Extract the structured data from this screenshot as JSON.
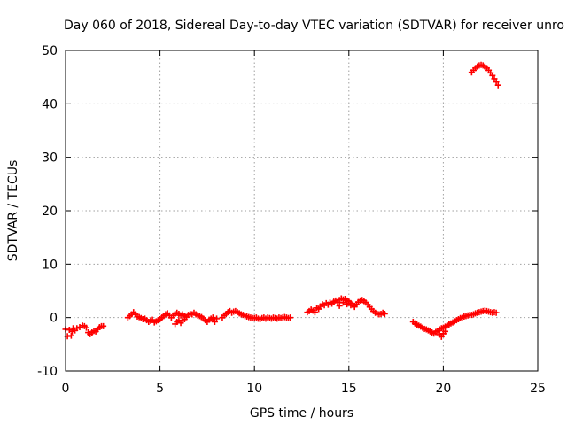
{
  "chart_data": {
    "type": "scatter",
    "title": "Day 060 of 2018, Sidereal Day-to-day VTEC variation (SDTVAR) for receiver unro",
    "xlabel": "GPS time / hours",
    "ylabel": "SDTVAR / TECUs",
    "xlim": [
      0,
      25
    ],
    "ylim": [
      -10,
      50
    ],
    "xticks": [
      "0",
      "5",
      "10",
      "15",
      "20",
      "25"
    ],
    "yticks": [
      "-10",
      "0",
      "10",
      "20",
      "30",
      "40",
      "50"
    ],
    "grid": true,
    "marker": "plus",
    "series": [
      {
        "name": "SDTVAR",
        "color": "#ff0000",
        "x": [
          0.0,
          0.1,
          0.2,
          0.3,
          0.35,
          0.4,
          0.5,
          0.6,
          0.75,
          0.9,
          1.0,
          1.1,
          1.2,
          1.3,
          1.4,
          1.5,
          1.6,
          1.7,
          1.8,
          1.9,
          2.0,
          3.3,
          3.4,
          3.5,
          3.6,
          3.7,
          3.8,
          3.9,
          4.0,
          4.1,
          4.2,
          4.3,
          4.4,
          4.5,
          4.6,
          4.7,
          4.8,
          4.9,
          5.0,
          5.1,
          5.2,
          5.3,
          5.4,
          5.5,
          5.6,
          5.7,
          5.8,
          5.9,
          6.0,
          6.1,
          6.2,
          6.3,
          6.4,
          6.5,
          6.6,
          6.7,
          6.8,
          6.9,
          7.0,
          7.1,
          7.2,
          7.3,
          7.4,
          7.5,
          7.6,
          7.7,
          7.8,
          7.9,
          8.0,
          5.8,
          5.9,
          6.0,
          6.1,
          6.2,
          6.3,
          8.3,
          8.4,
          8.5,
          8.6,
          8.7,
          8.8,
          8.9,
          9.0,
          9.1,
          9.2,
          9.3,
          9.4,
          9.5,
          9.6,
          9.7,
          9.8,
          9.9,
          10.0,
          10.1,
          10.2,
          10.3,
          10.4,
          10.5,
          10.6,
          10.7,
          10.8,
          10.9,
          11.0,
          11.1,
          11.2,
          11.3,
          11.4,
          11.5,
          11.6,
          11.7,
          11.8,
          11.9,
          12.8,
          12.9,
          13.0,
          13.1,
          13.2,
          13.3,
          13.4,
          13.5,
          13.6,
          13.7,
          13.8,
          13.9,
          14.0,
          14.1,
          14.2,
          14.3,
          14.4,
          14.5,
          14.6,
          14.7,
          14.8,
          14.9,
          15.0,
          15.1,
          15.2,
          15.3,
          15.4,
          15.5,
          15.6,
          15.7,
          15.8,
          15.9,
          16.0,
          16.1,
          16.2,
          16.3,
          16.4,
          16.5,
          16.6,
          16.7,
          16.8,
          16.9,
          14.5,
          14.7,
          14.9,
          15.1,
          15.3,
          18.4,
          18.5,
          18.6,
          18.7,
          18.8,
          18.9,
          19.0,
          19.1,
          19.2,
          19.3,
          19.4,
          19.5,
          19.6,
          19.7,
          19.8,
          19.9,
          20.0,
          20.1,
          20.2,
          20.3,
          20.4,
          20.5,
          20.6,
          20.7,
          20.8,
          20.9,
          21.0,
          21.1,
          21.2,
          21.3,
          21.4,
          21.5,
          21.6,
          21.7,
          21.8,
          21.9,
          22.0,
          22.1,
          22.2,
          22.3,
          22.4,
          22.5,
          22.6,
          22.7,
          22.8,
          19.8,
          19.9,
          20.0,
          20.1,
          21.5,
          21.6,
          21.7,
          21.8,
          21.9,
          22.0,
          22.1,
          22.2,
          22.3,
          22.4,
          22.5,
          22.6,
          22.7,
          22.8,
          22.9
        ],
        "y": [
          -2.2,
          -3.5,
          -2.3,
          -3.4,
          -2.6,
          -2.0,
          -2.4,
          -2.0,
          -1.8,
          -1.5,
          -1.6,
          -1.9,
          -2.8,
          -3.1,
          -2.8,
          -2.5,
          -2.6,
          -2.2,
          -1.8,
          -1.6,
          -1.6,
          0.0,
          0.3,
          0.6,
          1.0,
          0.6,
          0.2,
          0.1,
          -0.1,
          -0.3,
          -0.2,
          -0.5,
          -0.8,
          -0.6,
          -0.4,
          -0.9,
          -0.7,
          -0.5,
          -0.3,
          0.0,
          0.3,
          0.6,
          0.8,
          0.4,
          0.0,
          0.4,
          0.7,
          0.9,
          0.7,
          0.4,
          0.6,
          0.3,
          0.1,
          0.5,
          0.7,
          0.6,
          0.9,
          0.6,
          0.4,
          0.3,
          0.1,
          -0.2,
          -0.5,
          -0.8,
          -0.4,
          -0.2,
          0.0,
          -0.8,
          -0.2,
          -1.2,
          -0.8,
          -0.5,
          -1.0,
          -0.6,
          -0.3,
          0.0,
          0.4,
          0.7,
          1.0,
          1.2,
          0.9,
          1.1,
          1.2,
          1.0,
          0.8,
          0.6,
          0.5,
          0.3,
          0.2,
          0.1,
          0.0,
          -0.1,
          -0.1,
          0.0,
          -0.2,
          -0.3,
          -0.1,
          0.0,
          -0.2,
          0.0,
          -0.1,
          -0.2,
          0.0,
          -0.1,
          -0.2,
          0.0,
          -0.1,
          0.0,
          0.1,
          0.0,
          -0.1,
          0.0,
          1.0,
          1.2,
          1.5,
          1.3,
          1.0,
          1.8,
          1.6,
          2.1,
          2.5,
          2.3,
          2.7,
          2.4,
          2.8,
          2.6,
          3.0,
          3.2,
          2.9,
          3.3,
          3.6,
          3.4,
          3.5,
          3.2,
          3.0,
          2.7,
          2.4,
          2.2,
          2.5,
          2.9,
          3.2,
          3.3,
          3.1,
          2.8,
          2.4,
          2.0,
          1.6,
          1.2,
          0.9,
          0.7,
          0.6,
          0.7,
          0.9,
          0.7,
          2.2,
          2.8,
          2.5,
          2.3,
          2.0,
          -0.8,
          -1.1,
          -1.3,
          -1.5,
          -1.7,
          -1.9,
          -2.1,
          -2.2,
          -2.4,
          -2.6,
          -2.8,
          -3.0,
          -2.7,
          -2.5,
          -2.2,
          -2.0,
          -1.9,
          -1.7,
          -1.5,
          -1.3,
          -1.1,
          -0.9,
          -0.7,
          -0.5,
          -0.3,
          -0.1,
          0.0,
          0.2,
          0.3,
          0.4,
          0.5,
          0.5,
          0.6,
          0.8,
          0.9,
          1.0,
          1.1,
          1.2,
          1.3,
          1.2,
          1.1,
          1.0,
          0.9,
          1.0,
          0.9,
          -3.2,
          -3.6,
          -3.0,
          -2.6,
          45.9,
          46.3,
          46.7,
          47.0,
          47.2,
          47.3,
          47.2,
          47.0,
          46.7,
          46.3,
          45.8,
          45.3,
          44.7,
          44.1,
          43.5
        ]
      }
    ]
  }
}
